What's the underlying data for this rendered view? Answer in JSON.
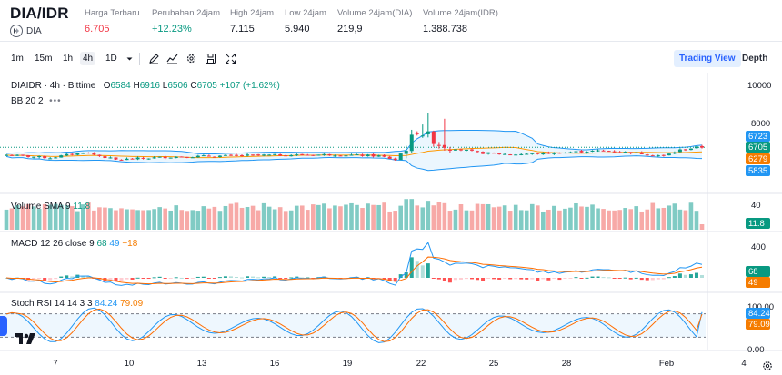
{
  "ticker": {
    "pair": "DIA/IDR",
    "coin_link": "DIA",
    "stats": [
      {
        "label": "Harga Terbaru",
        "value": "6.705",
        "color": "#f23645"
      },
      {
        "label": "Perubahan 24jam",
        "value": "+12.23%",
        "color": "#089981"
      },
      {
        "label": "High 24jam",
        "value": "7.115",
        "color": "#131722"
      },
      {
        "label": "Low 24jam",
        "value": "5.940",
        "color": "#131722"
      },
      {
        "label": "Volume 24jam(DIA)",
        "value": "219,9",
        "color": "#131722"
      },
      {
        "label": "Volume 24jam(IDR)",
        "value": "1.388.738",
        "color": "#131722"
      }
    ]
  },
  "toolbar": {
    "timeframes": [
      "1m",
      "15m",
      "1h",
      "4h",
      "1D"
    ],
    "active_timeframe": "4h",
    "icons": [
      "chevron-down-icon",
      "draw-icon",
      "indicator-icon",
      "fx-icon",
      "settings-icon",
      "save-icon",
      "fullscreen-icon"
    ],
    "views": [
      "Trading View",
      "Depth"
    ],
    "active_view": "Trading View"
  },
  "legend": {
    "symbol": "DIAIDR · 4h · Bittime",
    "o_label": "O",
    "o": "6584",
    "h_label": "H",
    "h": "6916",
    "l_label": "L",
    "l": "6506",
    "c_label": "C",
    "c": "6705",
    "change": "+107 (+1.62%)",
    "bb": "BB 20 2",
    "volume_label": "Volume SMA 9",
    "volume_value": "11.8",
    "macd_label": "MACD 12 26 close 9",
    "macd_1": "68",
    "macd_2": "49",
    "macd_3": "−18",
    "stoch_label": "Stoch RSI 14 14 3 3",
    "stoch_k": "84.24",
    "stoch_d": "79.09"
  },
  "axes": {
    "price_ticks": [
      "10000",
      "8000"
    ],
    "price_labels": [
      {
        "text": "6723",
        "color": "#2196f3"
      },
      {
        "text": "6705",
        "color": "#089981"
      },
      {
        "text": "6279",
        "color": "#f57c00"
      },
      {
        "text": "5835",
        "color": "#2196f3"
      }
    ],
    "volume_tick": "40",
    "volume_label": "11.8",
    "macd_tick": "400",
    "macd_labels": [
      {
        "text": "68",
        "color": "#089981"
      },
      {
        "text": "49",
        "color": "#f57c00"
      }
    ],
    "stoch_ticks": [
      "100.00",
      "0.00"
    ],
    "stoch_labels": [
      {
        "text": "84.24",
        "color": "#2196f3"
      },
      {
        "text": "79.09",
        "color": "#f57c00"
      }
    ],
    "x_labels": [
      "7",
      "10",
      "13",
      "16",
      "19",
      "22",
      "25",
      "28",
      "Feb",
      "4"
    ]
  },
  "colors": {
    "up": "#089981",
    "down": "#f23645",
    "bb_band": "#2196f3",
    "bb_fill": "#e3f2fd",
    "bb_basis": "#ff9800",
    "macd_line": "#2196f3",
    "signal_line": "#ff6d00",
    "stoch_k": "#2196f3",
    "stoch_d": "#ff6d00"
  }
}
